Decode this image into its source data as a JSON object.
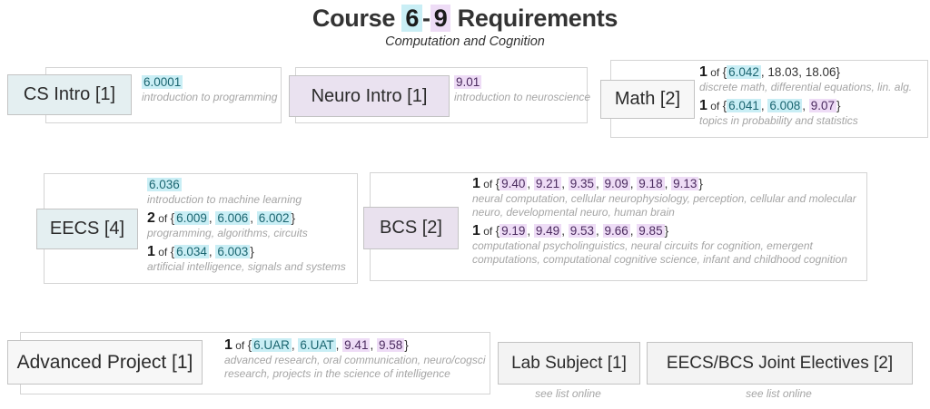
{
  "palette": {
    "cyan_highlight": "#c9eef5",
    "cyan_text": "#1b6570",
    "lavender_highlight": "#eedcf6",
    "lavender_text": "#4a2a5e",
    "label_cyan_bg": "#e4eff1",
    "label_lavender_bg": "#eae2f0",
    "label_gray_bg": "#f7f7f7",
    "box_border": "#d4d4d4",
    "desc_gray_text": "#a5a5a5",
    "dark_text": "#1b1b1b"
  },
  "header": {
    "title_segments": [
      {
        "t": "Course ",
        "s": "p"
      },
      {
        "t": "6",
        "s": "c"
      },
      {
        "t": "-",
        "s": "p"
      },
      {
        "t": "9",
        "s": "v"
      },
      {
        "t": " Requirements",
        "s": "p"
      }
    ],
    "subtitle": "Computation and Cognition"
  },
  "boxes": {
    "cs_intro": {
      "label": "CS Intro [1]",
      "reqs": [
        {
          "line": [
            {
              "t": "6.0001",
              "s": "c"
            }
          ],
          "desc": "introduction to programming"
        }
      ]
    },
    "neuro_intro": {
      "label": "Neuro Intro [1]",
      "reqs": [
        {
          "line": [
            {
              "t": "9.01",
              "s": "v"
            }
          ],
          "desc": "introduction to neuroscience"
        }
      ]
    },
    "math": {
      "label": "Math [2]",
      "reqs": [
        {
          "line": [
            {
              "t": "1",
              "s": "n"
            },
            {
              "t": " of ",
              "s": "of"
            },
            {
              "t": "{",
              "s": "p"
            },
            {
              "t": "6.042",
              "s": "c"
            },
            {
              "t": ", 18.03, 18.06}",
              "s": "p"
            }
          ],
          "desc": "discrete math, differential equations, lin. alg."
        },
        {
          "line": [
            {
              "t": "1",
              "s": "n"
            },
            {
              "t": " of ",
              "s": "of"
            },
            {
              "t": "{",
              "s": "p"
            },
            {
              "t": "6.041",
              "s": "c"
            },
            {
              "t": ", ",
              "s": "p"
            },
            {
              "t": "6.008",
              "s": "c"
            },
            {
              "t": ", ",
              "s": "p"
            },
            {
              "t": "9.07",
              "s": "v"
            },
            {
              "t": "}",
              "s": "p"
            }
          ],
          "desc": "topics in probability and statistics"
        }
      ]
    },
    "eecs": {
      "label": "EECS [4]",
      "reqs": [
        {
          "line": [
            {
              "t": "6.036",
              "s": "c"
            }
          ],
          "desc": "introduction to machine learning"
        },
        {
          "line": [
            {
              "t": "2",
              "s": "n"
            },
            {
              "t": " of ",
              "s": "of"
            },
            {
              "t": "{",
              "s": "p"
            },
            {
              "t": "6.009",
              "s": "c"
            },
            {
              "t": ", ",
              "s": "p"
            },
            {
              "t": "6.006",
              "s": "c"
            },
            {
              "t": ", ",
              "s": "p"
            },
            {
              "t": "6.002",
              "s": "c"
            },
            {
              "t": "}",
              "s": "p"
            }
          ],
          "desc": "programming, algorithms,  circuits"
        },
        {
          "line": [
            {
              "t": "1",
              "s": "n"
            },
            {
              "t": " of ",
              "s": "of"
            },
            {
              "t": "{",
              "s": "p"
            },
            {
              "t": "6.034",
              "s": "c"
            },
            {
              "t": ", ",
              "s": "p"
            },
            {
              "t": "6.003",
              "s": "c"
            },
            {
              "t": "}",
              "s": "p"
            }
          ],
          "desc": "artificial intelligence, signals and systems"
        }
      ]
    },
    "bcs": {
      "label": "BCS [2]",
      "reqs": [
        {
          "line": [
            {
              "t": "1",
              "s": "n"
            },
            {
              "t": " of ",
              "s": "of"
            },
            {
              "t": "{",
              "s": "p"
            },
            {
              "t": "9.40",
              "s": "v"
            },
            {
              "t": ", ",
              "s": "p"
            },
            {
              "t": "9.21",
              "s": "v"
            },
            {
              "t": ", ",
              "s": "p"
            },
            {
              "t": "9.35",
              "s": "v"
            },
            {
              "t": ", ",
              "s": "p"
            },
            {
              "t": "9.09",
              "s": "v"
            },
            {
              "t": ", ",
              "s": "p"
            },
            {
              "t": "9.18",
              "s": "v"
            },
            {
              "t": ", ",
              "s": "p"
            },
            {
              "t": "9.13",
              "s": "v"
            },
            {
              "t": "}",
              "s": "p"
            }
          ],
          "desc": "neural computation, cellular neurophysiology, perception, cellular and molecular neuro, developmental neuro, human brain"
        },
        {
          "line": [
            {
              "t": "1",
              "s": "n"
            },
            {
              "t": " of ",
              "s": "of"
            },
            {
              "t": "{",
              "s": "p"
            },
            {
              "t": "9.19",
              "s": "v"
            },
            {
              "t": ", ",
              "s": "p"
            },
            {
              "t": "9.49",
              "s": "v"
            },
            {
              "t": ", ",
              "s": "p"
            },
            {
              "t": "9.53",
              "s": "v"
            },
            {
              "t": ", ",
              "s": "p"
            },
            {
              "t": "9.66",
              "s": "v"
            },
            {
              "t": ", ",
              "s": "p"
            },
            {
              "t": "9.85",
              "s": "v"
            },
            {
              "t": "}",
              "s": "p"
            }
          ],
          "desc": "computational psycholinguistics, neural circuits for cognition, emergent computations, computational cognitive science, infant and childhood cognition"
        }
      ]
    },
    "advanced_project": {
      "label": "Advanced Project [1]",
      "reqs": [
        {
          "line": [
            {
              "t": "1",
              "s": "n"
            },
            {
              "t": " of ",
              "s": "of"
            },
            {
              "t": "{",
              "s": "p"
            },
            {
              "t": "6.UAR",
              "s": "c"
            },
            {
              "t": ", ",
              "s": "p"
            },
            {
              "t": "6.UAT",
              "s": "c"
            },
            {
              "t": ", ",
              "s": "p"
            },
            {
              "t": "9.41",
              "s": "v"
            },
            {
              "t": ", ",
              "s": "p"
            },
            {
              "t": "9.58",
              "s": "v"
            },
            {
              "t": "}",
              "s": "p"
            }
          ],
          "desc": "advanced research, oral communication, neuro/cogsci research, projects in the science of intelligence"
        }
      ]
    },
    "lab_subject": {
      "label": "Lab Subject [1]",
      "note": "see list online"
    },
    "joint_electives": {
      "label": "EECS/BCS Joint Electives [2]",
      "note": "see list online"
    }
  }
}
